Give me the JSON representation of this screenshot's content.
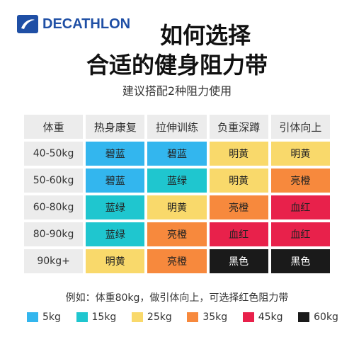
{
  "brand": {
    "name": "DECATHLON",
    "color": "#1f4fa5"
  },
  "title": {
    "line1": "如何选择",
    "line2": "合适的健身阻力带"
  },
  "subtitle": "建议搭配2种阻力使用",
  "table": {
    "headers": [
      "体重",
      "热身康复",
      "拉伸训练",
      "负重深蹲",
      "引体向上"
    ],
    "rows": [
      {
        "weight": "40-50kg",
        "cells": [
          {
            "text": "碧蓝",
            "color": "#33b6ee",
            "text_color": "#222222"
          },
          {
            "text": "碧蓝",
            "color": "#33b6ee",
            "text_color": "#222222"
          },
          {
            "text": "明黄",
            "color": "#f9d96b",
            "text_color": "#222222"
          },
          {
            "text": "明黄",
            "color": "#f9d96b",
            "text_color": "#222222"
          }
        ]
      },
      {
        "weight": "50-60kg",
        "cells": [
          {
            "text": "碧蓝",
            "color": "#33b6ee",
            "text_color": "#222222"
          },
          {
            "text": "蓝绿",
            "color": "#1fc6cf",
            "text_color": "#222222"
          },
          {
            "text": "明黄",
            "color": "#f9d96b",
            "text_color": "#222222"
          },
          {
            "text": "亮橙",
            "color": "#f7893d",
            "text_color": "#222222"
          }
        ]
      },
      {
        "weight": "60-80kg",
        "cells": [
          {
            "text": "蓝绿",
            "color": "#1fc6cf",
            "text_color": "#222222"
          },
          {
            "text": "明黄",
            "color": "#f9d96b",
            "text_color": "#222222"
          },
          {
            "text": "亮橙",
            "color": "#f7893d",
            "text_color": "#222222"
          },
          {
            "text": "血红",
            "color": "#e8214b",
            "text_color": "#222222"
          }
        ]
      },
      {
        "weight": "80-90kg",
        "cells": [
          {
            "text": "蓝绿",
            "color": "#1fc6cf",
            "text_color": "#222222"
          },
          {
            "text": "亮橙",
            "color": "#f7893d",
            "text_color": "#222222"
          },
          {
            "text": "血红",
            "color": "#e8214b",
            "text_color": "#222222"
          },
          {
            "text": "血红",
            "color": "#e8214b",
            "text_color": "#222222"
          }
        ]
      },
      {
        "weight": "90kg+",
        "cells": [
          {
            "text": "明黄",
            "color": "#f9d96b",
            "text_color": "#222222"
          },
          {
            "text": "亮橙",
            "color": "#f7893d",
            "text_color": "#222222"
          },
          {
            "text": "黑色",
            "color": "#1a1a1a",
            "text_color": "#ffffff"
          },
          {
            "text": "黑色",
            "color": "#1a1a1a",
            "text_color": "#ffffff"
          }
        ]
      }
    ]
  },
  "example": "例如：体重80kg，做引体向上，可选择红色阻力带",
  "legend": [
    {
      "label": "5kg",
      "color": "#33b6ee"
    },
    {
      "label": "15kg",
      "color": "#1fc6cf"
    },
    {
      "label": "25kg",
      "color": "#f9d96b"
    },
    {
      "label": "35kg",
      "color": "#f7893d"
    },
    {
      "label": "45kg",
      "color": "#e8214b"
    },
    {
      "label": "60kg",
      "color": "#1a1a1a"
    }
  ]
}
